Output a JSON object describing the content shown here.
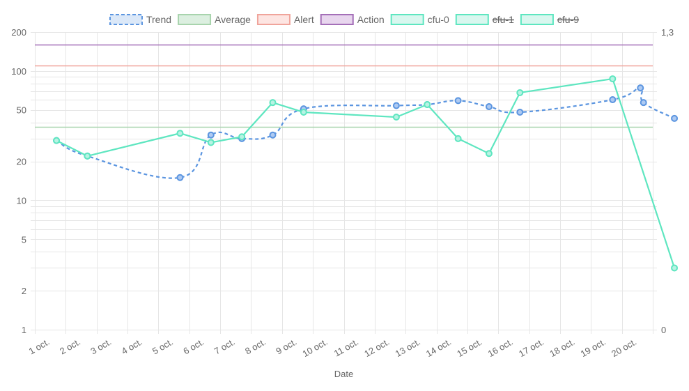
{
  "chart_data": {
    "type": "line",
    "x_axis": {
      "label": "Date",
      "categories": [
        "1 oct.",
        "2 oct.",
        "3 oct.",
        "4 oct.",
        "5 oct.",
        "6 oct.",
        "7 oct.",
        "8 oct.",
        "9 oct.",
        "10 oct.",
        "11 oct.",
        "12 oct.",
        "13 oct.",
        "14 oct.",
        "15 oct.",
        "16 oct.",
        "17 oct.",
        "18 oct.",
        "19 oct.",
        "20 oct."
      ]
    },
    "y_axis_left": {
      "scale": "log",
      "range": [
        1,
        200
      ],
      "tick_labels": [
        "1",
        "2",
        "5",
        "10",
        "20",
        "50",
        "100",
        "200"
      ],
      "tick_values": [
        1,
        2,
        5,
        10,
        20,
        50,
        100,
        200
      ]
    },
    "y_axis_right": {
      "range": [
        0,
        1.3
      ],
      "tick_labels": [
        "0",
        "1,3"
      ],
      "tick_values": [
        0,
        1.3
      ]
    },
    "grid": true,
    "legend": {
      "placement": "top",
      "items": [
        {
          "name": "Trend",
          "fill": "#dbe8f8",
          "stroke": "#5b95e0",
          "dashed": true,
          "hidden": false
        },
        {
          "name": "Average",
          "fill": "#dcefe0",
          "stroke": "#a8d4ad",
          "dashed": false,
          "hidden": false
        },
        {
          "name": "Alert",
          "fill": "#fde5e2",
          "stroke": "#f0a49b",
          "dashed": false,
          "hidden": false
        },
        {
          "name": "Action",
          "fill": "#e8d6ee",
          "stroke": "#a46fb8",
          "dashed": false,
          "hidden": false
        },
        {
          "name": "cfu-0",
          "fill": "#d9f7ef",
          "stroke": "#5ee6c0",
          "dashed": false,
          "hidden": false
        },
        {
          "name": "cfu-1",
          "fill": "#d9f7ef",
          "stroke": "#5ee6c0",
          "dashed": false,
          "hidden": true
        },
        {
          "name": "cfu-9",
          "fill": "#d9f7ef",
          "stroke": "#5ee6c0",
          "dashed": false,
          "hidden": true
        }
      ]
    },
    "series": [
      {
        "name": "Trend",
        "color": "#5b95e0",
        "dashed": true,
        "points": [
          {
            "x": 0.7,
            "y": 29
          },
          {
            "x": 1.7,
            "y": 22
          },
          {
            "x": 4.7,
            "y": 15
          },
          {
            "x": 5.7,
            "y": 32
          },
          {
            "x": 6.7,
            "y": 30
          },
          {
            "x": 7.7,
            "y": 32
          },
          {
            "x": 8.7,
            "y": 51
          },
          {
            "x": 11.7,
            "y": 54
          },
          {
            "x": 12.7,
            "y": 55
          },
          {
            "x": 13.7,
            "y": 59
          },
          {
            "x": 14.7,
            "y": 53
          },
          {
            "x": 15.7,
            "y": 48
          },
          {
            "x": 18.7,
            "y": 60
          },
          {
            "x": 19.6,
            "y": 74
          },
          {
            "x": 19.7,
            "y": 57
          },
          {
            "x": 20.7,
            "y": 43
          }
        ]
      },
      {
        "name": "cfu-0",
        "color": "#5ee6c0",
        "dashed": false,
        "points": [
          {
            "x": 0.7,
            "y": 29
          },
          {
            "x": 1.7,
            "y": 22
          },
          {
            "x": 4.7,
            "y": 33
          },
          {
            "x": 5.7,
            "y": 28
          },
          {
            "x": 6.7,
            "y": 31
          },
          {
            "x": 7.7,
            "y": 57
          },
          {
            "x": 8.7,
            "y": 48
          },
          {
            "x": 11.7,
            "y": 44
          },
          {
            "x": 12.7,
            "y": 55
          },
          {
            "x": 13.7,
            "y": 30
          },
          {
            "x": 14.7,
            "y": 23
          },
          {
            "x": 15.7,
            "y": 68
          },
          {
            "x": 18.7,
            "y": 87
          },
          {
            "x": 20.7,
            "y": 3
          }
        ]
      }
    ],
    "reference_lines": [
      {
        "name": "Average",
        "y": 37,
        "color": "#a8d4ad"
      },
      {
        "name": "Alert",
        "y": 110,
        "color": "#f0a49b"
      },
      {
        "name": "Action",
        "y": 160,
        "color": "#a46fb8"
      }
    ]
  }
}
